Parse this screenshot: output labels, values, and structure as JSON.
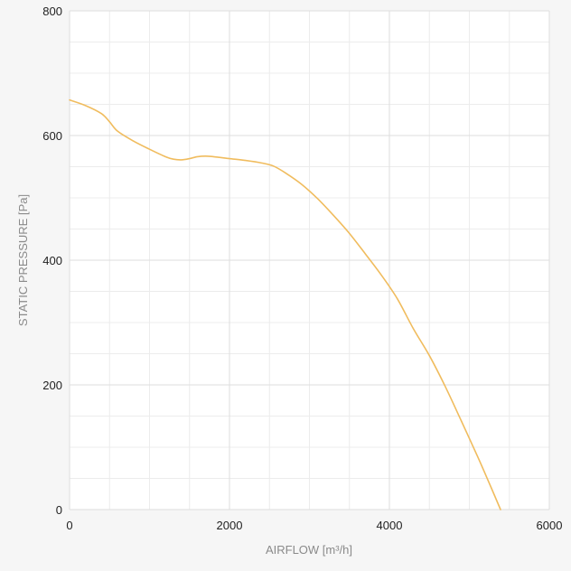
{
  "chart_data": {
    "type": "line",
    "title": "",
    "xlabel": "AIRFLOW [m³/h]",
    "ylabel": "STATIC PRESSURE [Pa]",
    "xlim": [
      0,
      6000
    ],
    "ylim": [
      0,
      800
    ],
    "x_ticks": [
      0,
      2000,
      4000,
      6000
    ],
    "y_ticks": [
      0,
      200,
      400,
      600,
      800
    ],
    "x_minor_gridlines": [
      500,
      1000,
      1500,
      2500,
      3000,
      3500,
      4500,
      5000,
      5500
    ],
    "y_minor_gridlines": [
      50,
      100,
      150,
      250,
      300,
      350,
      450,
      500,
      550,
      650,
      700,
      750
    ],
    "grid": true,
    "series": [
      {
        "color": "#f0bc5e",
        "x": [
          0,
          200,
          400,
          500,
          600,
          800,
          1000,
          1200,
          1300,
          1400,
          1500,
          1600,
          1700,
          1800,
          2000,
          2200,
          2400,
          2550,
          2700,
          2900,
          3100,
          3300,
          3500,
          3700,
          3900,
          4100,
          4300,
          4500,
          4700,
          4900,
          5100,
          5250,
          5390
        ],
        "y": [
          657,
          648,
          635,
          622,
          607,
          591,
          578,
          566,
          562,
          561,
          563,
          566,
          567,
          566,
          563,
          560,
          556,
          551,
          540,
          522,
          499,
          472,
          443,
          410,
          376,
          338,
          290,
          247,
          197,
          142,
          86,
          42,
          0
        ]
      }
    ]
  }
}
